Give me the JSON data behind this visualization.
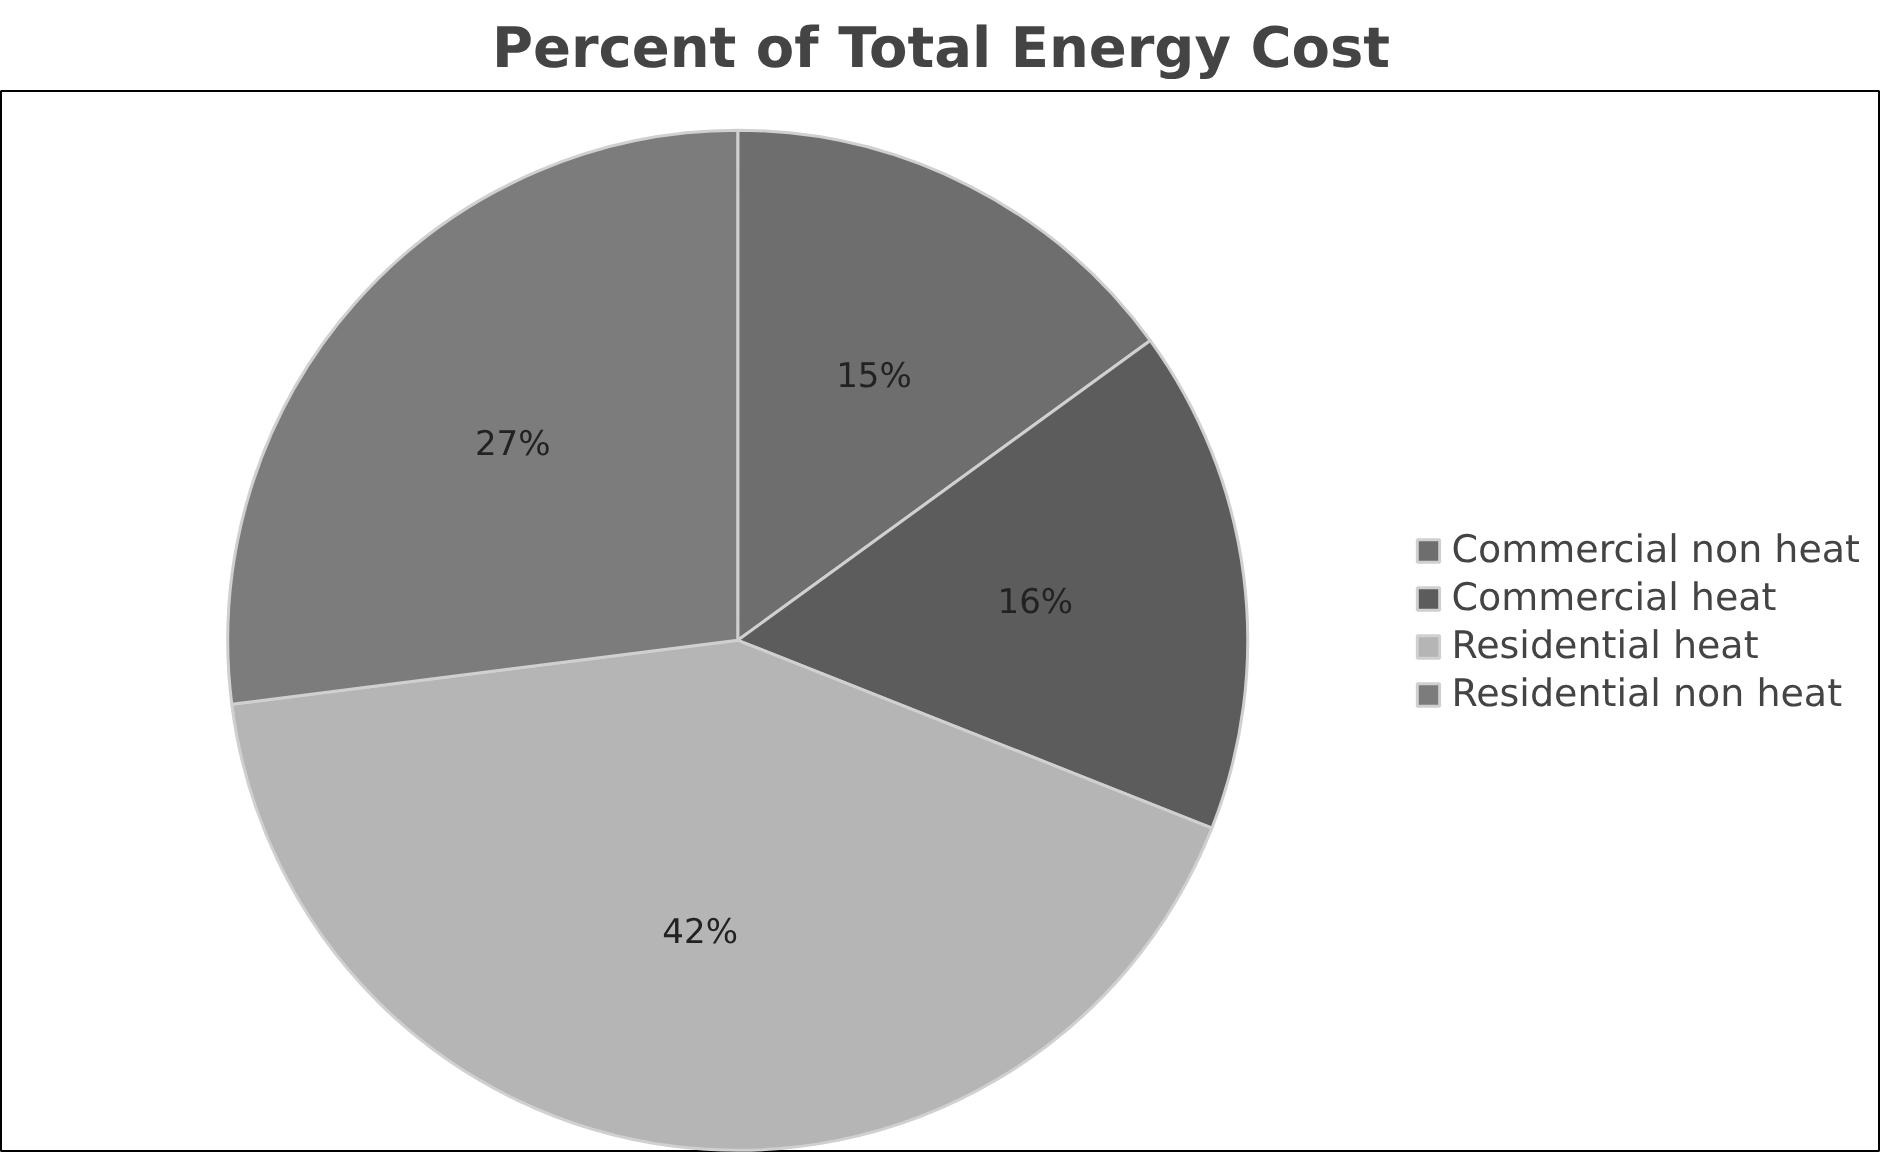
{
  "chart_data": {
    "type": "pie",
    "title": "Percent of Total Energy Cost",
    "categories": [
      "Commercial non heat",
      "Commercial heat",
      "Residential heat",
      "Residential non heat"
    ],
    "values": [
      15,
      16,
      42,
      27
    ],
    "colors": [
      "#6e6e6e",
      "#5c5c5c",
      "#b5b5b5",
      "#7c7c7c"
    ],
    "value_labels": [
      "15%",
      "16%",
      "42%",
      "27%"
    ],
    "legend": "right"
  }
}
